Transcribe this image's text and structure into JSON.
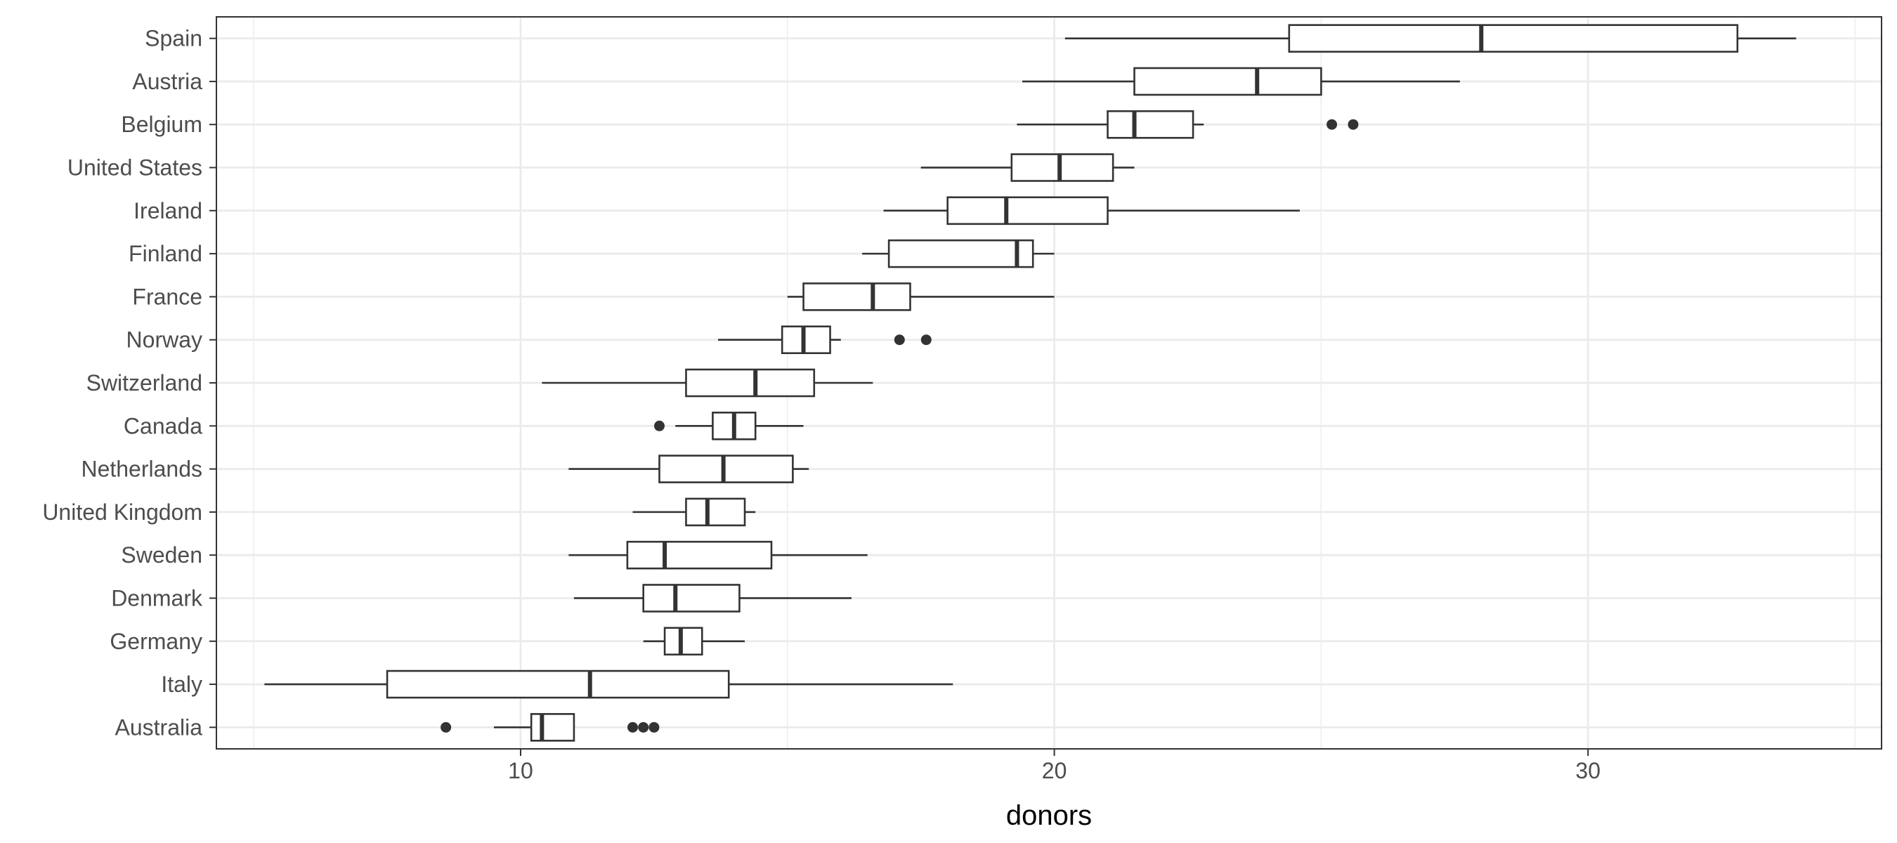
{
  "chart_data": {
    "type": "boxplot",
    "orientation": "horizontal",
    "xlabel": "donors",
    "ylabel": "",
    "xlim": [
      4.3,
      35.5
    ],
    "x_ticks": [
      10,
      20,
      30
    ],
    "x_tick_labels": [
      "10",
      "20",
      "30"
    ],
    "grid": true,
    "legend": "none",
    "categories": [
      "Spain",
      "Austria",
      "Belgium",
      "United States",
      "Ireland",
      "Finland",
      "France",
      "Norway",
      "Switzerland",
      "Canada",
      "Netherlands",
      "United Kingdom",
      "Sweden",
      "Denmark",
      "Germany",
      "Italy",
      "Australia"
    ],
    "boxes": [
      {
        "name": "Spain",
        "min": 20.2,
        "q1": 24.4,
        "median": 28.0,
        "q3": 32.8,
        "max": 33.9,
        "outliers": []
      },
      {
        "name": "Austria",
        "min": 19.4,
        "q1": 21.5,
        "median": 23.8,
        "q3": 25.0,
        "max": 27.6,
        "outliers": []
      },
      {
        "name": "Belgium",
        "min": 19.3,
        "q1": 21.0,
        "median": 21.5,
        "q3": 22.6,
        "max": 22.8,
        "outliers": [
          25.2,
          25.6
        ]
      },
      {
        "name": "United States",
        "min": 17.5,
        "q1": 19.2,
        "median": 20.1,
        "q3": 21.1,
        "max": 21.5,
        "outliers": []
      },
      {
        "name": "Ireland",
        "min": 16.8,
        "q1": 18.0,
        "median": 19.1,
        "q3": 21.0,
        "max": 24.6,
        "outliers": []
      },
      {
        "name": "Finland",
        "min": 16.4,
        "q1": 16.9,
        "median": 19.3,
        "q3": 19.6,
        "max": 20.0,
        "outliers": []
      },
      {
        "name": "France",
        "min": 15.0,
        "q1": 15.3,
        "median": 16.6,
        "q3": 17.3,
        "max": 20.0,
        "outliers": []
      },
      {
        "name": "Norway",
        "min": 13.7,
        "q1": 14.9,
        "median": 15.3,
        "q3": 15.8,
        "max": 16.0,
        "outliers": [
          17.1,
          17.6
        ]
      },
      {
        "name": "Switzerland",
        "min": 10.4,
        "q1": 13.1,
        "median": 14.4,
        "q3": 15.5,
        "max": 16.6,
        "outliers": []
      },
      {
        "name": "Canada",
        "min": 12.9,
        "q1": 13.6,
        "median": 14.0,
        "q3": 14.4,
        "max": 15.3,
        "outliers": [
          12.6
        ]
      },
      {
        "name": "Netherlands",
        "min": 10.9,
        "q1": 12.6,
        "median": 13.8,
        "q3": 15.1,
        "max": 15.4,
        "outliers": []
      },
      {
        "name": "United Kingdom",
        "min": 12.1,
        "q1": 13.1,
        "median": 13.5,
        "q3": 14.2,
        "max": 14.4,
        "outliers": []
      },
      {
        "name": "Sweden",
        "min": 10.9,
        "q1": 12.0,
        "median": 12.7,
        "q3": 14.7,
        "max": 16.5,
        "outliers": []
      },
      {
        "name": "Denmark",
        "min": 11.0,
        "q1": 12.3,
        "median": 12.9,
        "q3": 14.1,
        "max": 16.2,
        "outliers": []
      },
      {
        "name": "Germany",
        "min": 12.3,
        "q1": 12.7,
        "median": 13.0,
        "q3": 13.4,
        "max": 14.2,
        "outliers": []
      },
      {
        "name": "Italy",
        "min": 5.2,
        "q1": 7.5,
        "median": 11.3,
        "q3": 13.9,
        "max": 18.1,
        "outliers": []
      },
      {
        "name": "Australia",
        "min": 9.5,
        "q1": 10.2,
        "median": 10.4,
        "q3": 11.0,
        "max": 11.0,
        "outliers": [
          8.6,
          12.1,
          12.3,
          12.5
        ]
      }
    ],
    "colors": {
      "panel_border": "#333333",
      "grid": "#ebebeb",
      "box_stroke": "#333333",
      "box_fill": "#ffffff",
      "outlier": "#333333",
      "tick_label": "#4d4d4d",
      "axis_title": "#000000"
    }
  }
}
